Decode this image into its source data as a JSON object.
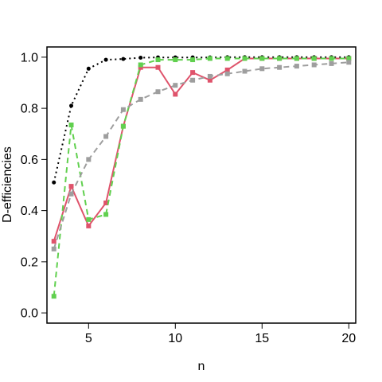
{
  "chart_data": {
    "type": "line",
    "xlabel": "n",
    "ylabel": "D-efficiencies",
    "xlim": [
      2.6,
      20.4
    ],
    "ylim": [
      -0.04,
      1.04
    ],
    "x_ticks": [
      5,
      10,
      15,
      20
    ],
    "y_ticks": [
      0.0,
      0.2,
      0.4,
      0.6,
      0.8,
      1.0
    ],
    "x_tick_labels": [
      "5",
      "10",
      "15",
      "20"
    ],
    "y_tick_labels": [
      "0.0",
      "0.2",
      "0.4",
      "0.6",
      "0.8",
      "1.0"
    ],
    "grid": false,
    "legend": "none",
    "x": [
      3,
      4,
      5,
      6,
      7,
      8,
      9,
      10,
      11,
      12,
      13,
      14,
      15,
      16,
      17,
      18,
      19,
      20
    ],
    "series": [
      {
        "color": "#000000",
        "line_style": "dotted",
        "marker": "circle",
        "values": [
          0.51,
          0.81,
          0.955,
          0.99,
          0.993,
          0.998,
          0.999,
          0.999,
          0.999,
          0.999,
          1.0,
          1.0,
          1.0,
          1.0,
          1.0,
          1.0,
          1.0,
          1.0
        ]
      },
      {
        "color": "#DF536B",
        "line_style": "solid",
        "marker": "square",
        "values": [
          0.28,
          0.495,
          0.34,
          0.43,
          0.73,
          0.96,
          0.96,
          0.855,
          0.94,
          0.91,
          0.95,
          0.995,
          0.995,
          0.995,
          0.995,
          0.995,
          0.995,
          0.995
        ]
      },
      {
        "color": "#61D04F",
        "line_style": "dashed",
        "marker": "square",
        "values": [
          0.065,
          0.735,
          0.365,
          0.385,
          0.73,
          0.97,
          0.99,
          0.99,
          0.99,
          0.995,
          0.995,
          0.995,
          0.995,
          0.995,
          0.995,
          0.995,
          0.995,
          0.995
        ]
      },
      {
        "color": "#9E9E9E",
        "line_style": "dashed",
        "marker": "square",
        "values": [
          0.25,
          0.465,
          0.6,
          0.69,
          0.795,
          0.835,
          0.865,
          0.89,
          0.91,
          0.925,
          0.935,
          0.945,
          0.955,
          0.96,
          0.965,
          0.97,
          0.975,
          0.98
        ]
      }
    ]
  }
}
